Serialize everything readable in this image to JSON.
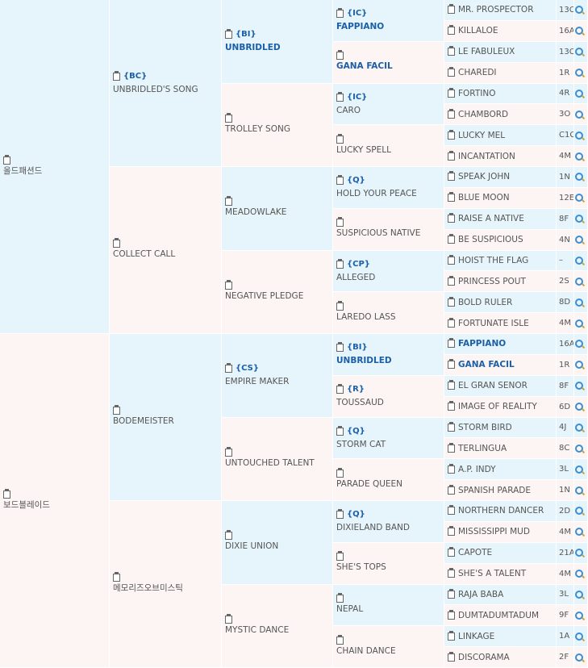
{
  "gen1": [
    {
      "name": "올드패션드"
    },
    {
      "name": "보드블레이드"
    }
  ],
  "gen2": [
    {
      "tag": "{BC}",
      "name": "UNBRIDLED'S SONG"
    },
    {
      "name": "COLLECT CALL"
    },
    {
      "name": "BODEMEISTER"
    },
    {
      "name": "메모리즈오브미스틱"
    }
  ],
  "gen3": [
    {
      "tag": "{BI}",
      "name": "UNBRIDLED",
      "bold": true
    },
    {
      "name": "TROLLEY SONG"
    },
    {
      "name": "MEADOWLAKE"
    },
    {
      "name": "NEGATIVE PLEDGE"
    },
    {
      "tag": "{CS}",
      "name": "EMPIRE MAKER"
    },
    {
      "name": "UNTOUCHED TALENT"
    },
    {
      "name": "DIXIE UNION"
    },
    {
      "name": "MYSTIC DANCE"
    }
  ],
  "gen4": [
    {
      "tag": "{IC}",
      "name": "FAPPIANO",
      "bold": true
    },
    {
      "name": "GANA FACIL",
      "bold": true
    },
    {
      "tag": "{IC}",
      "name": "CARO"
    },
    {
      "name": "LUCKY SPELL"
    },
    {
      "tag": "{Q}",
      "name": "HOLD YOUR PEACE"
    },
    {
      "name": "SUSPICIOUS NATIVE"
    },
    {
      "tag": "{CP}",
      "name": "ALLEGED"
    },
    {
      "name": "LAREDO LASS"
    },
    {
      "tag": "{BI}",
      "name": "UNBRIDLED",
      "bold": true
    },
    {
      "tag": "{R}",
      "name": "TOUSSAUD"
    },
    {
      "tag": "{Q}",
      "name": "STORM CAT"
    },
    {
      "name": "PARADE QUEEN"
    },
    {
      "tag": "{Q}",
      "name": "DIXIELAND BAND"
    },
    {
      "name": "SHE'S TOPS"
    },
    {
      "name": "NEPAL"
    },
    {
      "name": "CHAIN DANCE"
    }
  ],
  "gen5": [
    {
      "name": "MR. PROSPECTOR",
      "code": "13C"
    },
    {
      "name": "KILLALOE",
      "code": "16A"
    },
    {
      "name": "LE FABULEUX",
      "code": "13C"
    },
    {
      "name": "CHAREDI",
      "code": "1R"
    },
    {
      "name": "FORTINO",
      "code": "4R"
    },
    {
      "name": "CHAMBORD",
      "code": "3O"
    },
    {
      "name": "LUCKY MEL",
      "code": "C1C"
    },
    {
      "name": "INCANTATION",
      "code": "4M"
    },
    {
      "name": "SPEAK JOHN",
      "code": "1N"
    },
    {
      "name": "BLUE MOON",
      "code": "12E"
    },
    {
      "name": "RAISE A NATIVE",
      "code": "8F"
    },
    {
      "name": "BE SUSPICIOUS",
      "code": "4N"
    },
    {
      "name": "HOIST THE FLAG",
      "code": "–"
    },
    {
      "name": "PRINCESS POUT",
      "code": "2S"
    },
    {
      "name": "BOLD RULER",
      "code": "8D"
    },
    {
      "name": "FORTUNATE ISLE",
      "code": "4M"
    },
    {
      "name": "FAPPIANO",
      "code": "16A",
      "bold": true
    },
    {
      "name": "GANA FACIL",
      "code": "1R",
      "bold": true
    },
    {
      "name": "EL GRAN SENOR",
      "code": "8F"
    },
    {
      "name": "IMAGE OF REALITY",
      "code": "6D"
    },
    {
      "name": "STORM BIRD",
      "code": "4J"
    },
    {
      "name": "TERLINGUA",
      "code": "8C"
    },
    {
      "name": "A.P. INDY",
      "code": "3L"
    },
    {
      "name": "SPANISH PARADE",
      "code": "1N"
    },
    {
      "name": "NORTHERN DANCER",
      "code": "2D"
    },
    {
      "name": "MISSISSIPPI MUD",
      "code": "4M"
    },
    {
      "name": "CAPOTE",
      "code": "21A"
    },
    {
      "name": "SHE'S A TALENT",
      "code": "4M"
    },
    {
      "name": "RAJA BABA",
      "code": "3L"
    },
    {
      "name": "DUMTADUMTADUM",
      "code": "9F"
    },
    {
      "name": "LINKAGE",
      "code": "1A"
    },
    {
      "name": "DISCORAMA",
      "code": "2F"
    }
  ]
}
